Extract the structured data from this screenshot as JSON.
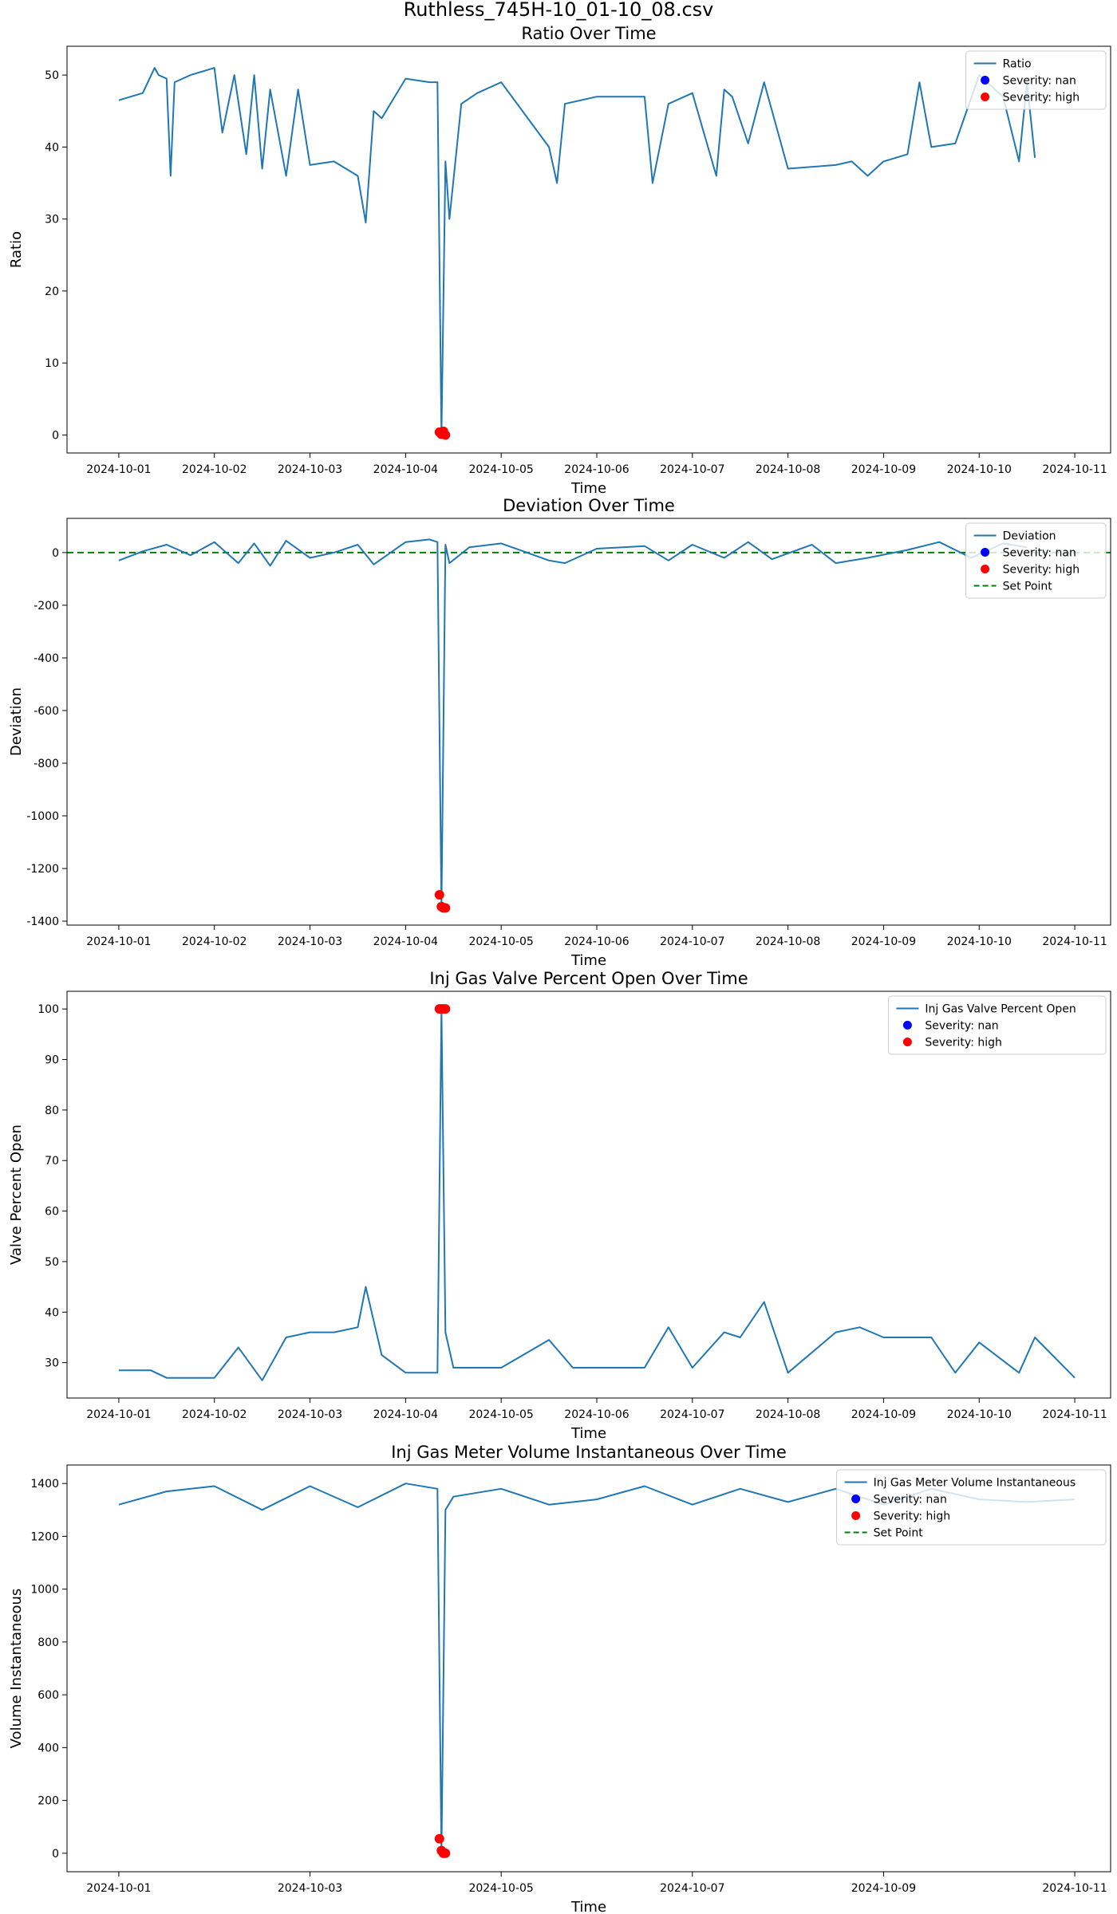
{
  "figure": {
    "suptitle": "Ruthless_745H-10_01-10_08.csv"
  },
  "colors": {
    "line": "#1f77b4",
    "severity_nan": "#0000ff",
    "severity_high": "#ff0000",
    "set_point": "#008000",
    "axes": "#000000"
  },
  "chart_data": [
    {
      "type": "line",
      "title": "Ratio Over Time",
      "xlabel": "Time",
      "ylabel": "Ratio",
      "xlim": [
        "2024-09-30T11:00",
        "2024-10-11T09:00"
      ],
      "ylim": [
        -2.5,
        54
      ],
      "xticks": [
        "2024-10-01",
        "2024-10-02",
        "2024-10-03",
        "2024-10-04",
        "2024-10-05",
        "2024-10-06",
        "2024-10-07",
        "2024-10-08",
        "2024-10-09",
        "2024-10-10",
        "2024-10-11"
      ],
      "yticks": [
        0,
        10,
        20,
        30,
        40,
        50
      ],
      "grid": false,
      "legend": {
        "position": "top-right",
        "entries": [
          "Ratio",
          "Severity: nan",
          "Severity: high"
        ]
      },
      "series": [
        {
          "name": "Ratio",
          "x": [
            "2024-10-01T00:00",
            "2024-10-01T06:00",
            "2024-10-01T09:00",
            "2024-10-01T10:00",
            "2024-10-01T12:00",
            "2024-10-01T13:00",
            "2024-10-01T14:00",
            "2024-10-01T18:00",
            "2024-10-02T00:00",
            "2024-10-02T02:00",
            "2024-10-02T05:00",
            "2024-10-02T08:00",
            "2024-10-02T10:00",
            "2024-10-02T12:00",
            "2024-10-02T14:00",
            "2024-10-02T18:00",
            "2024-10-02T21:00",
            "2024-10-03T00:00",
            "2024-10-03T06:00",
            "2024-10-03T12:00",
            "2024-10-03T14:00",
            "2024-10-03T16:00",
            "2024-10-03T18:00",
            "2024-10-04T00:00",
            "2024-10-04T06:00",
            "2024-10-04T08:00",
            "2024-10-04T09:00",
            "2024-10-04T10:00",
            "2024-10-04T11:00",
            "2024-10-04T14:00",
            "2024-10-04T18:00",
            "2024-10-05T00:00",
            "2024-10-05T12:00",
            "2024-10-05T14:00",
            "2024-10-05T16:00",
            "2024-10-06T00:00",
            "2024-10-06T12:00",
            "2024-10-06T14:00",
            "2024-10-06T18:00",
            "2024-10-07T00:00",
            "2024-10-07T06:00",
            "2024-10-07T08:00",
            "2024-10-07T10:00",
            "2024-10-07T14:00",
            "2024-10-07T18:00",
            "2024-10-08T00:00",
            "2024-10-08T12:00",
            "2024-10-08T16:00",
            "2024-10-08T20:00",
            "2024-10-09T00:00",
            "2024-10-09T06:00",
            "2024-10-09T09:00",
            "2024-10-09T12:00",
            "2024-10-09T18:00",
            "2024-10-10T00:00",
            "2024-10-10T06:00",
            "2024-10-10T10:00",
            "2024-10-10T12:00",
            "2024-10-10T14:00"
          ],
          "y": [
            46.5,
            47.5,
            51,
            50,
            49.5,
            36,
            49,
            50,
            51,
            42,
            50,
            39,
            50,
            37,
            48,
            36,
            48,
            37.5,
            38,
            36,
            29.5,
            45,
            44,
            49.5,
            49,
            49,
            0,
            38,
            30,
            46,
            47.5,
            49,
            40,
            35,
            46,
            47,
            47,
            35,
            46,
            47.5,
            36,
            48,
            47,
            40.5,
            49,
            37,
            37.5,
            38,
            36,
            38,
            39,
            49,
            40,
            40.5,
            50,
            47,
            38,
            49,
            38.5
          ]
        }
      ],
      "severity_nan": {
        "name": "Severity: nan",
        "x": [],
        "y": []
      },
      "severity_high": {
        "name": "Severity: high",
        "x": [
          "2024-10-04T08:30",
          "2024-10-04T09:00",
          "2024-10-04T09:30",
          "2024-10-04T10:00"
        ],
        "y": [
          0.4,
          0.1,
          0.5,
          0
        ]
      }
    },
    {
      "type": "line",
      "title": "Deviation Over Time",
      "xlabel": "Time",
      "ylabel": "Deviation",
      "xlim": [
        "2024-09-30T11:00",
        "2024-10-11T09:00"
      ],
      "ylim": [
        -1415,
        130
      ],
      "xticks": [
        "2024-10-01",
        "2024-10-02",
        "2024-10-03",
        "2024-10-04",
        "2024-10-05",
        "2024-10-06",
        "2024-10-07",
        "2024-10-08",
        "2024-10-09",
        "2024-10-10",
        "2024-10-11"
      ],
      "yticks": [
        -1400,
        -1200,
        -1000,
        -800,
        -600,
        -400,
        -200,
        0
      ],
      "grid": false,
      "set_point": 0,
      "legend": {
        "position": "top-right",
        "entries": [
          "Deviation",
          "Severity: nan",
          "Severity: high",
          "Set Point"
        ]
      },
      "series": [
        {
          "name": "Deviation",
          "x": [
            "2024-10-01T00:00",
            "2024-10-01T06:00",
            "2024-10-01T12:00",
            "2024-10-01T18:00",
            "2024-10-02T00:00",
            "2024-10-02T06:00",
            "2024-10-02T10:00",
            "2024-10-02T14:00",
            "2024-10-02T18:00",
            "2024-10-03T00:00",
            "2024-10-03T06:00",
            "2024-10-03T12:00",
            "2024-10-03T16:00",
            "2024-10-04T00:00",
            "2024-10-04T06:00",
            "2024-10-04T08:00",
            "2024-10-04T09:00",
            "2024-10-04T10:00",
            "2024-10-04T11:00",
            "2024-10-04T16:00",
            "2024-10-05T00:00",
            "2024-10-05T12:00",
            "2024-10-05T16:00",
            "2024-10-06T00:00",
            "2024-10-06T12:00",
            "2024-10-06T18:00",
            "2024-10-07T00:00",
            "2024-10-07T08:00",
            "2024-10-07T14:00",
            "2024-10-07T20:00",
            "2024-10-08T06:00",
            "2024-10-08T12:00",
            "2024-10-08T20:00",
            "2024-10-09T06:00",
            "2024-10-09T14:00",
            "2024-10-09T22:00",
            "2024-10-10T06:00",
            "2024-10-10T12:00"
          ],
          "y": [
            -30,
            5,
            30,
            -10,
            40,
            -40,
            35,
            -50,
            45,
            -20,
            0,
            30,
            -45,
            40,
            50,
            40,
            -1350,
            30,
            -40,
            20,
            35,
            -30,
            -40,
            15,
            25,
            -30,
            30,
            -20,
            40,
            -25,
            30,
            -40,
            -20,
            10,
            40,
            -20,
            35,
            20
          ]
        }
      ],
      "severity_nan": {
        "name": "Severity: nan",
        "x": [],
        "y": []
      },
      "severity_high": {
        "name": "Severity: high",
        "x": [
          "2024-10-04T08:30",
          "2024-10-04T09:00",
          "2024-10-04T09:30",
          "2024-10-04T10:00"
        ],
        "y": [
          -1300,
          -1345,
          -1350,
          -1350
        ]
      }
    },
    {
      "type": "line",
      "title": "Inj Gas Valve Percent Open Over Time",
      "xlabel": "Time",
      "ylabel": "Valve Percent Open",
      "xlim": [
        "2024-09-30T11:00",
        "2024-10-11T09:00"
      ],
      "ylim": [
        23,
        103.5
      ],
      "xticks": [
        "2024-10-01",
        "2024-10-02",
        "2024-10-03",
        "2024-10-04",
        "2024-10-05",
        "2024-10-06",
        "2024-10-07",
        "2024-10-08",
        "2024-10-09",
        "2024-10-10",
        "2024-10-11"
      ],
      "yticks": [
        30,
        40,
        50,
        60,
        70,
        80,
        90,
        100
      ],
      "grid": false,
      "legend": {
        "position": "top-right",
        "entries": [
          "Inj Gas Valve Percent Open",
          "Severity: nan",
          "Severity: high"
        ]
      },
      "series": [
        {
          "name": "Inj Gas Valve Percent Open",
          "x": [
            "2024-10-01T00:00",
            "2024-10-01T08:00",
            "2024-10-01T12:00",
            "2024-10-01T16:00",
            "2024-10-02T00:00",
            "2024-10-02T06:00",
            "2024-10-02T12:00",
            "2024-10-02T18:00",
            "2024-10-03T00:00",
            "2024-10-03T06:00",
            "2024-10-03T12:00",
            "2024-10-03T14:00",
            "2024-10-03T18:00",
            "2024-10-04T00:00",
            "2024-10-04T06:00",
            "2024-10-04T08:00",
            "2024-10-04T09:00",
            "2024-10-04T10:00",
            "2024-10-04T12:00",
            "2024-10-04T18:00",
            "2024-10-05T00:00",
            "2024-10-05T12:00",
            "2024-10-05T18:00",
            "2024-10-06T00:00",
            "2024-10-06T12:00",
            "2024-10-06T18:00",
            "2024-10-07T00:00",
            "2024-10-07T08:00",
            "2024-10-07T12:00",
            "2024-10-07T18:00",
            "2024-10-08T00:00",
            "2024-10-08T12:00",
            "2024-10-08T18:00",
            "2024-10-09T00:00",
            "2024-10-09T12:00",
            "2024-10-09T18:00",
            "2024-10-10T00:00",
            "2024-10-10T10:00",
            "2024-10-10T14:00",
            "2024-10-11T00:00"
          ],
          "y": [
            28.5,
            28.5,
            27,
            27,
            27,
            33,
            26.5,
            35,
            36,
            36,
            37,
            45,
            31.5,
            28,
            28,
            28,
            100,
            36,
            29,
            29,
            29,
            34.5,
            29,
            29,
            29,
            37,
            29,
            36,
            35,
            42,
            28,
            36,
            37,
            35,
            35,
            28,
            34,
            28,
            35,
            27
          ]
        }
      ],
      "severity_nan": {
        "name": "Severity: nan",
        "x": [],
        "y": []
      },
      "severity_high": {
        "name": "Severity: high",
        "x": [
          "2024-10-04T08:30",
          "2024-10-04T09:00",
          "2024-10-04T09:30",
          "2024-10-04T10:00"
        ],
        "y": [
          100,
          100,
          100,
          100
        ]
      }
    },
    {
      "type": "line",
      "title": "Inj Gas Meter Volume Instantaneous Over Time",
      "xlabel": "Time",
      "ylabel": "Volume Instantaneous",
      "xlim": [
        "2024-09-30T11:00",
        "2024-10-11T09:00"
      ],
      "ylim": [
        -70,
        1470
      ],
      "xticks": [
        "2024-10-01",
        "2024-10-03",
        "2024-10-05",
        "2024-10-07",
        "2024-10-09",
        "2024-10-11"
      ],
      "yticks": [
        0,
        200,
        400,
        600,
        800,
        1000,
        1200,
        1400
      ],
      "grid": false,
      "set_point": null,
      "legend": {
        "position": "top-right",
        "entries": [
          "Inj Gas Meter Volume Instantaneous",
          "Severity: nan",
          "Severity: high",
          "Set Point"
        ]
      },
      "series": [
        {
          "name": "Inj Gas Meter Volume Instantaneous",
          "x": [
            "2024-10-01T00:00",
            "2024-10-01T12:00",
            "2024-10-02T00:00",
            "2024-10-02T12:00",
            "2024-10-03T00:00",
            "2024-10-03T12:00",
            "2024-10-04T00:00",
            "2024-10-04T08:00",
            "2024-10-04T09:00",
            "2024-10-04T10:00",
            "2024-10-04T12:00",
            "2024-10-05T00:00",
            "2024-10-05T12:00",
            "2024-10-06T00:00",
            "2024-10-06T12:00",
            "2024-10-07T00:00",
            "2024-10-07T12:00",
            "2024-10-08T00:00",
            "2024-10-08T12:00",
            "2024-10-09T00:00",
            "2024-10-09T12:00",
            "2024-10-10T00:00",
            "2024-10-10T12:00",
            "2024-10-11T00:00"
          ],
          "y": [
            1320,
            1370,
            1390,
            1300,
            1390,
            1310,
            1400,
            1380,
            0,
            1300,
            1350,
            1380,
            1320,
            1340,
            1390,
            1320,
            1380,
            1330,
            1380,
            1320,
            1380,
            1340,
            1330,
            1340
          ]
        }
      ],
      "severity_nan": {
        "name": "Severity: nan",
        "x": [],
        "y": []
      },
      "severity_high": {
        "name": "Severity: high",
        "x": [
          "2024-10-04T08:30",
          "2024-10-04T09:00",
          "2024-10-04T09:30",
          "2024-10-04T10:00"
        ],
        "y": [
          55,
          10,
          0,
          0
        ]
      }
    }
  ]
}
